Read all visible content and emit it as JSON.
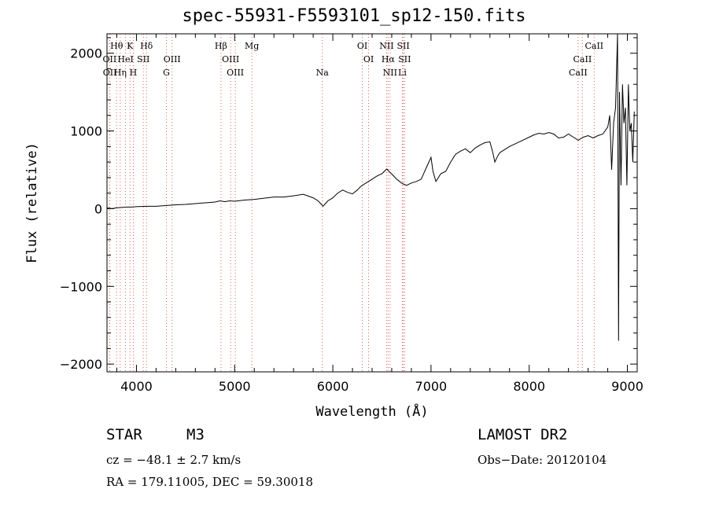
{
  "chart_data": {
    "type": "line",
    "title": "spec-55931-F5593101_sp12-150.fits",
    "xlabel": "Wavelength (Å)",
    "ylabel": "Flux (relative)",
    "xlim": [
      3700,
      9100
    ],
    "ylim": [
      -2100,
      2250
    ],
    "x_ticks": [
      4000,
      5000,
      6000,
      7000,
      8000,
      9000
    ],
    "y_ticks": [
      -2000,
      -1000,
      0,
      1000,
      2000
    ],
    "x_tick_labels": [
      "4000",
      "5000",
      "6000",
      "7000",
      "8000",
      "9000"
    ],
    "y_tick_labels": [
      "−2000",
      "−1000",
      "0",
      "1000",
      "2000"
    ],
    "grid": false,
    "series": [
      {
        "color": "#000000",
        "x": [
          3700,
          3750,
          3800,
          3850,
          3900,
          3950,
          4000,
          4100,
          4200,
          4300,
          4400,
          4500,
          4600,
          4700,
          4800,
          4850,
          4900,
          4950,
          5000,
          5100,
          5200,
          5300,
          5400,
          5450,
          5500,
          5600,
          5700,
          5800,
          5850,
          5880,
          5900,
          5920,
          5950,
          6000,
          6050,
          6100,
          6150,
          6200,
          6250,
          6280,
          6300,
          6350,
          6400,
          6450,
          6500,
          6550,
          6580,
          6620,
          6650,
          6700,
          6750,
          6800,
          6850,
          6900,
          6950,
          7000,
          7020,
          7050,
          7100,
          7150,
          7200,
          7250,
          7300,
          7350,
          7400,
          7450,
          7500,
          7550,
          7600,
          7630,
          7650,
          7680,
          7700,
          7750,
          7800,
          7850,
          7900,
          7950,
          8000,
          8050,
          8100,
          8150,
          8200,
          8250,
          8300,
          8350,
          8400,
          8450,
          8500,
          8550,
          8600,
          8650,
          8700,
          8750,
          8800,
          8820,
          8840,
          8860,
          8880,
          8900,
          8910,
          8920,
          8935,
          8950,
          8965,
          8980,
          8995,
          9010,
          9025,
          9040,
          9055,
          9070
        ],
        "values": [
          10,
          0,
          10,
          15,
          20,
          20,
          25,
          30,
          30,
          40,
          50,
          55,
          65,
          75,
          85,
          100,
          90,
          100,
          95,
          110,
          120,
          135,
          150,
          150,
          150,
          165,
          185,
          140,
          100,
          60,
          30,
          60,
          100,
          140,
          200,
          240,
          210,
          190,
          240,
          280,
          300,
          340,
          380,
          420,
          450,
          510,
          470,
          420,
          380,
          330,
          300,
          330,
          350,
          380,
          520,
          660,
          480,
          350,
          450,
          480,
          600,
          700,
          740,
          770,
          720,
          780,
          820,
          850,
          860,
          720,
          600,
          680,
          720,
          760,
          800,
          830,
          860,
          890,
          920,
          950,
          970,
          960,
          980,
          960,
          910,
          920,
          960,
          920,
          880,
          920,
          940,
          910,
          940,
          960,
          1050,
          1200,
          500,
          1100,
          1300,
          2250,
          -1700,
          1500,
          300,
          1600,
          1100,
          1300,
          300,
          1600,
          1000,
          1100,
          600,
          1250
        ]
      }
    ],
    "spectral_lines": [
      {
        "label": "Hθ",
        "x": 3798,
        "row": 0
      },
      {
        "label": "K",
        "x": 3934,
        "row": 0
      },
      {
        "label": "Hδ",
        "x": 4102,
        "row": 0
      },
      {
        "label": "Hβ",
        "x": 4861,
        "row": 0
      },
      {
        "label": "Mg",
        "x": 5175,
        "row": 0
      },
      {
        "label": "OI",
        "x": 6300,
        "row": 0
      },
      {
        "label": "NII",
        "x": 6548,
        "row": 0
      },
      {
        "label": "SII",
        "x": 6717,
        "row": 0
      },
      {
        "label": "CaII",
        "x": 8662,
        "row": 0
      },
      {
        "label": "OII",
        "x": 3727,
        "row": 1
      },
      {
        "label": "HeI",
        "x": 3889,
        "row": 1
      },
      {
        "label": "SII",
        "x": 4070,
        "row": 1
      },
      {
        "label": "OIII",
        "x": 4363,
        "row": 1
      },
      {
        "label": "OIII",
        "x": 4959,
        "row": 1
      },
      {
        "label": "OI",
        "x": 6364,
        "row": 1
      },
      {
        "label": "Hα",
        "x": 6563,
        "row": 1
      },
      {
        "label": "SII",
        "x": 6731,
        "row": 1
      },
      {
        "label": "CaII",
        "x": 8542,
        "row": 1
      },
      {
        "label": "OII",
        "x": 3729,
        "row": 2
      },
      {
        "label": "Hη",
        "x": 3835,
        "row": 2
      },
      {
        "label": "H",
        "x": 3968,
        "row": 2
      },
      {
        "label": "G",
        "x": 4305,
        "row": 2
      },
      {
        "label": "OIII",
        "x": 5007,
        "row": 2
      },
      {
        "label": "Na",
        "x": 5893,
        "row": 2
      },
      {
        "label": "NII",
        "x": 6583,
        "row": 2
      },
      {
        "label": "Li",
        "x": 6708,
        "row": 2
      },
      {
        "label": "CaII",
        "x": 8498,
        "row": 2
      }
    ]
  },
  "info": {
    "object_type": "STAR",
    "subclass": "M3",
    "survey": "LAMOST DR2",
    "cz_line": "cz = −48.1 ± 2.7 km/s",
    "obs_date_line": "Obs−Date: 20120104",
    "coords_line": "RA = 179.11005, DEC =  59.30018"
  }
}
